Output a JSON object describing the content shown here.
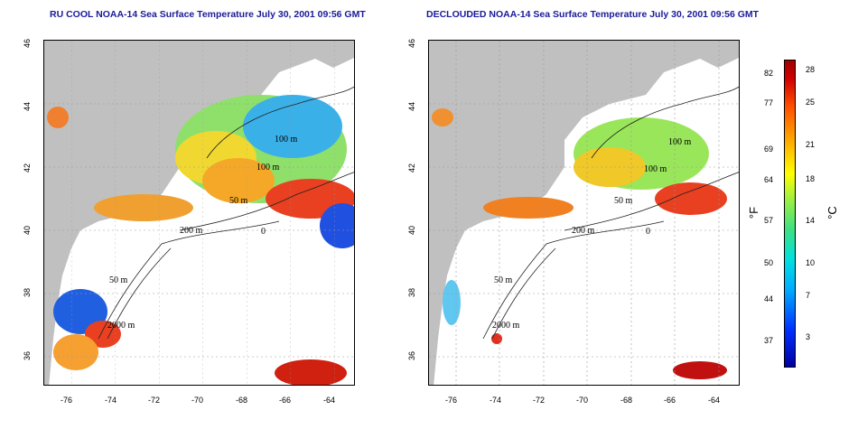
{
  "left_panel": {
    "title": "RU COOL NOAA-14 Sea Surface Temperature July 30, 2001 09:56 GMT",
    "contour_labels": [
      "100 m",
      "100 m",
      "50 m",
      "200 m",
      "50 m",
      "2000 m",
      "0"
    ]
  },
  "right_panel": {
    "title": "DECLOUDED NOAA-14 Sea Surface Temperature July 30, 2001 09:56 GMT",
    "contour_labels": [
      "100 m",
      "100 m",
      "50 m",
      "200 m",
      "50 m",
      "2000 m",
      "0"
    ]
  },
  "axes": {
    "x_ticks": [
      "-76",
      "-74",
      "-72",
      "-70",
      "-68",
      "-66",
      "-64"
    ],
    "y_ticks": [
      "46",
      "44",
      "42",
      "40",
      "38",
      "36"
    ]
  },
  "colorbar": {
    "fahrenheit_label": "°F",
    "celsius_label": "°C",
    "fahrenheit_ticks": [
      "82",
      "77",
      "69",
      "64",
      "57",
      "50",
      "44",
      "37"
    ],
    "celsius_ticks": [
      "28",
      "25",
      "21",
      "18",
      "14",
      "10",
      "7",
      "3"
    ]
  },
  "colors": {
    "land": "#c0c0c0",
    "water": "#ffffff",
    "title": "#1a1a9a",
    "warm": "#e8301a",
    "cool": "#1a40e0",
    "mid": "#f5d020"
  }
}
